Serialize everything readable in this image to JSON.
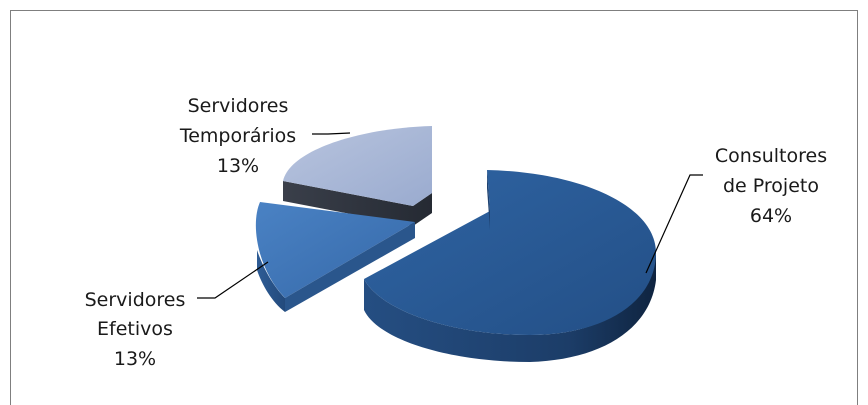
{
  "chart_data": {
    "type": "pie",
    "title": "",
    "style": "3d-exploded",
    "slices": [
      {
        "name_lines": [
          "Consultores",
          "de Projeto"
        ],
        "percent_label": "64%",
        "value": 64,
        "color": "#2a5a94"
      },
      {
        "name_lines": [
          "Servidores",
          "Efetivos"
        ],
        "percent_label": "13%",
        "value": 13,
        "color": "#3f75b8"
      },
      {
        "name_lines": [
          "Servidores",
          "Temporários"
        ],
        "percent_label": "13%",
        "value": 13,
        "color": "#aab8d6"
      }
    ]
  }
}
